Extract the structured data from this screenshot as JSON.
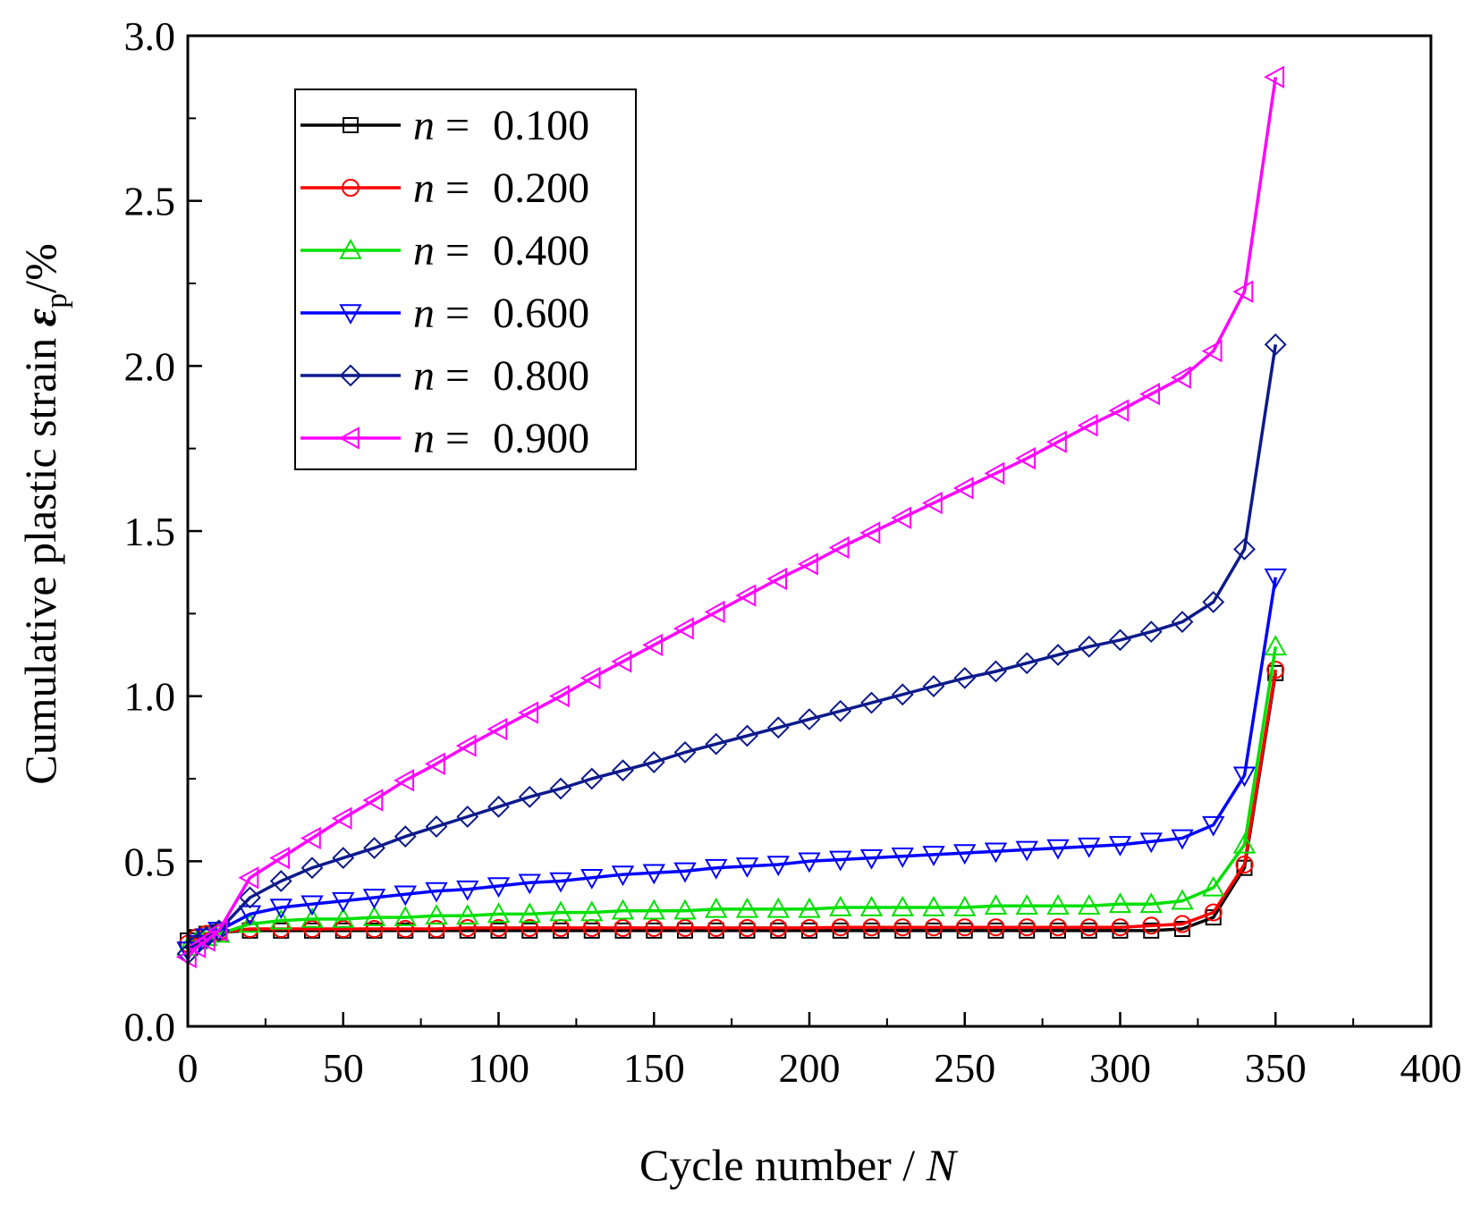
{
  "chart_data": {
    "type": "line",
    "title": "",
    "xlabel": "Cycle number / ",
    "xlabel_var": "N",
    "ylabel": "Cumulative plastic strain  ",
    "ylabel_symbol": "ε",
    "ylabel_subscript": "p",
    "ylabel_unit": "/%",
    "xlim": [
      0,
      400
    ],
    "ylim": [
      0.0,
      3.0
    ],
    "xticks": [
      "0",
      "50",
      "100",
      "150",
      "200",
      "250",
      "300",
      "350",
      "400"
    ],
    "yticks": [
      "0.0",
      "0.5",
      "1.0",
      "1.5",
      "2.0",
      "2.5",
      "3.0"
    ],
    "legend_position": "top-left",
    "series": [
      {
        "name": "n = 0.100",
        "var": "n",
        "eq": "=",
        "value": "0.100",
        "color": "#000000",
        "marker": "square",
        "x": [
          0,
          3,
          6,
          10,
          20,
          30,
          40,
          50,
          60,
          70,
          80,
          90,
          100,
          110,
          120,
          130,
          140,
          150,
          160,
          170,
          180,
          190,
          200,
          210,
          220,
          230,
          240,
          250,
          260,
          270,
          280,
          290,
          300,
          310,
          320,
          330,
          340,
          350
        ],
        "y": [
          0.26,
          0.27,
          0.28,
          0.285,
          0.29,
          0.29,
          0.29,
          0.29,
          0.29,
          0.29,
          0.29,
          0.29,
          0.29,
          0.29,
          0.29,
          0.29,
          0.29,
          0.29,
          0.29,
          0.29,
          0.29,
          0.29,
          0.29,
          0.29,
          0.29,
          0.29,
          0.29,
          0.29,
          0.29,
          0.29,
          0.29,
          0.29,
          0.29,
          0.29,
          0.295,
          0.33,
          0.48,
          1.07
        ]
      },
      {
        "name": "n = 0.200",
        "var": "n",
        "eq": "=",
        "value": "0.200",
        "color": "#ff0000",
        "marker": "circle",
        "x": [
          0,
          3,
          6,
          10,
          20,
          30,
          40,
          50,
          60,
          70,
          80,
          90,
          100,
          110,
          120,
          130,
          140,
          150,
          160,
          170,
          180,
          190,
          200,
          210,
          220,
          230,
          240,
          250,
          260,
          270,
          280,
          290,
          300,
          310,
          320,
          330,
          340,
          350
        ],
        "y": [
          0.25,
          0.27,
          0.28,
          0.285,
          0.295,
          0.295,
          0.295,
          0.295,
          0.295,
          0.295,
          0.295,
          0.298,
          0.298,
          0.298,
          0.298,
          0.298,
          0.298,
          0.298,
          0.298,
          0.298,
          0.298,
          0.298,
          0.298,
          0.3,
          0.3,
          0.3,
          0.3,
          0.3,
          0.3,
          0.3,
          0.3,
          0.3,
          0.3,
          0.305,
          0.31,
          0.345,
          0.49,
          1.08
        ]
      },
      {
        "name": "n = 0.400",
        "var": "n",
        "eq": "=",
        "value": "0.400",
        "color": "#00e000",
        "marker": "triangle-up",
        "x": [
          0,
          3,
          6,
          10,
          20,
          30,
          40,
          50,
          60,
          70,
          80,
          90,
          100,
          110,
          120,
          130,
          140,
          150,
          160,
          170,
          180,
          190,
          200,
          210,
          220,
          230,
          240,
          250,
          260,
          270,
          280,
          290,
          300,
          310,
          320,
          330,
          340,
          350
        ],
        "y": [
          0.24,
          0.26,
          0.27,
          0.28,
          0.31,
          0.32,
          0.325,
          0.325,
          0.33,
          0.33,
          0.335,
          0.335,
          0.34,
          0.34,
          0.345,
          0.345,
          0.35,
          0.35,
          0.35,
          0.355,
          0.355,
          0.355,
          0.355,
          0.36,
          0.36,
          0.36,
          0.36,
          0.36,
          0.365,
          0.365,
          0.365,
          0.365,
          0.37,
          0.37,
          0.38,
          0.42,
          0.55,
          1.15
        ]
      },
      {
        "name": "n = 0.600",
        "var": "n",
        "eq": "=",
        "value": "0.600",
        "color": "#0000ff",
        "marker": "triangle-down",
        "x": [
          0,
          3,
          6,
          10,
          20,
          30,
          40,
          50,
          60,
          70,
          80,
          90,
          100,
          110,
          120,
          130,
          140,
          150,
          160,
          170,
          180,
          190,
          200,
          210,
          220,
          230,
          240,
          250,
          260,
          270,
          280,
          290,
          300,
          310,
          320,
          330,
          340,
          350
        ],
        "y": [
          0.23,
          0.25,
          0.27,
          0.29,
          0.34,
          0.36,
          0.37,
          0.38,
          0.39,
          0.4,
          0.41,
          0.415,
          0.425,
          0.435,
          0.44,
          0.45,
          0.46,
          0.465,
          0.47,
          0.48,
          0.485,
          0.49,
          0.5,
          0.505,
          0.51,
          0.515,
          0.52,
          0.525,
          0.53,
          0.535,
          0.54,
          0.545,
          0.55,
          0.56,
          0.57,
          0.61,
          0.76,
          1.36
        ]
      },
      {
        "name": "n = 0.800",
        "var": "n",
        "eq": "=",
        "value": "0.800",
        "color": "#0d1a8c",
        "marker": "diamond",
        "x": [
          0,
          3,
          6,
          10,
          20,
          30,
          40,
          50,
          60,
          70,
          80,
          90,
          100,
          110,
          120,
          130,
          140,
          150,
          160,
          170,
          180,
          190,
          200,
          210,
          220,
          230,
          240,
          250,
          260,
          270,
          280,
          290,
          300,
          310,
          320,
          330,
          340,
          350
        ],
        "y": [
          0.22,
          0.25,
          0.27,
          0.29,
          0.39,
          0.44,
          0.48,
          0.51,
          0.54,
          0.575,
          0.605,
          0.635,
          0.665,
          0.695,
          0.72,
          0.75,
          0.775,
          0.8,
          0.83,
          0.855,
          0.88,
          0.905,
          0.93,
          0.955,
          0.98,
          1.005,
          1.03,
          1.055,
          1.075,
          1.1,
          1.125,
          1.15,
          1.17,
          1.195,
          1.225,
          1.285,
          1.445,
          2.065
        ]
      },
      {
        "name": "n = 0.900",
        "var": "n",
        "eq": "=",
        "value": "0.900",
        "color": "#ff00ff",
        "marker": "triangle-left",
        "x": [
          0,
          3,
          6,
          10,
          20,
          30,
          40,
          50,
          60,
          70,
          80,
          90,
          100,
          110,
          120,
          130,
          140,
          150,
          160,
          170,
          180,
          190,
          200,
          210,
          220,
          230,
          240,
          250,
          260,
          270,
          280,
          290,
          300,
          310,
          320,
          330,
          340,
          350
        ],
        "y": [
          0.21,
          0.24,
          0.26,
          0.29,
          0.45,
          0.51,
          0.57,
          0.63,
          0.685,
          0.745,
          0.795,
          0.85,
          0.9,
          0.95,
          1.0,
          1.055,
          1.105,
          1.155,
          1.205,
          1.255,
          1.305,
          1.355,
          1.4,
          1.45,
          1.495,
          1.54,
          1.585,
          1.63,
          1.675,
          1.72,
          1.77,
          1.82,
          1.865,
          1.915,
          1.965,
          2.045,
          2.225,
          2.875
        ]
      }
    ]
  }
}
